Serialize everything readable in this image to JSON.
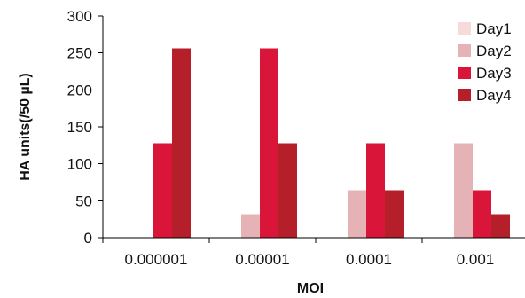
{
  "chart_data": {
    "type": "bar",
    "title": "",
    "xlabel": "MOI",
    "ylabel": "HA units(/50 µL)",
    "categories": [
      "0.000001",
      "0.00001",
      "0.0001",
      "0.001"
    ],
    "series": [
      {
        "name": "Day1",
        "values": [
          0,
          0,
          0,
          0
        ],
        "color": "#f7dada"
      },
      {
        "name": "Day2",
        "values": [
          0,
          32,
          64,
          128
        ],
        "color": "#e5b3b6"
      },
      {
        "name": "Day3",
        "values": [
          128,
          256,
          128,
          64
        ],
        "color": "#d9163a"
      },
      {
        "name": "Day4",
        "values": [
          256,
          128,
          64,
          32
        ],
        "color": "#b41f2a"
      }
    ],
    "ylim": [
      0,
      300
    ],
    "yticks": [
      0,
      50,
      100,
      150,
      200,
      250,
      300
    ],
    "grid": false,
    "legend": "top-right"
  }
}
